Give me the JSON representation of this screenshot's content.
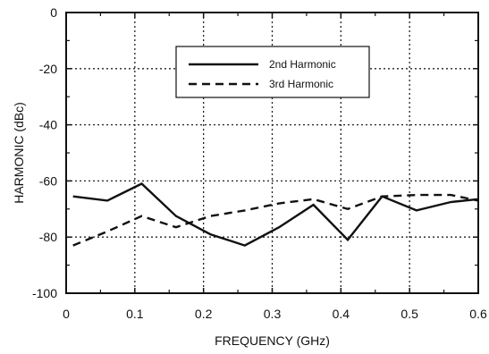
{
  "chart_data": {
    "type": "line",
    "title": "",
    "xlabel": "FREQUENCY (GHz)",
    "ylabel": "HARMONIC (dBc)",
    "xlim": [
      0,
      0.6
    ],
    "ylim": [
      -100,
      0
    ],
    "xticks": [
      0,
      0.1,
      0.2,
      0.3,
      0.4,
      0.5,
      0.6
    ],
    "xtick_labels": [
      "0",
      "0.1",
      "0.2",
      "0.3",
      "0.4",
      "0.5",
      "0.6"
    ],
    "yticks": [
      0,
      -20,
      -40,
      -60,
      -80,
      -100
    ],
    "ytick_labels": [
      "0",
      "-20",
      "-40",
      "-60",
      "-80",
      "-100"
    ],
    "grid": true,
    "legend_position": "top-center",
    "series": [
      {
        "name": "2nd Harmonic",
        "style": "solid",
        "x": [
          0.01,
          0.06,
          0.11,
          0.16,
          0.21,
          0.26,
          0.31,
          0.36,
          0.41,
          0.46,
          0.51,
          0.56,
          0.6
        ],
        "y": [
          -65.5,
          -67,
          -61,
          -72.5,
          -79,
          -83,
          -76.5,
          -68.5,
          -81,
          -65.5,
          -70.5,
          -67.5,
          -66.5
        ]
      },
      {
        "name": "3rd Harmonic",
        "style": "dashed",
        "x": [
          0.01,
          0.06,
          0.11,
          0.16,
          0.21,
          0.26,
          0.31,
          0.36,
          0.41,
          0.46,
          0.51,
          0.56,
          0.6
        ],
        "y": [
          -83,
          -78,
          -72.5,
          -76.5,
          -72.5,
          -70.5,
          -68,
          -66.5,
          -70,
          -65.5,
          -65,
          -65,
          -67
        ]
      }
    ]
  }
}
